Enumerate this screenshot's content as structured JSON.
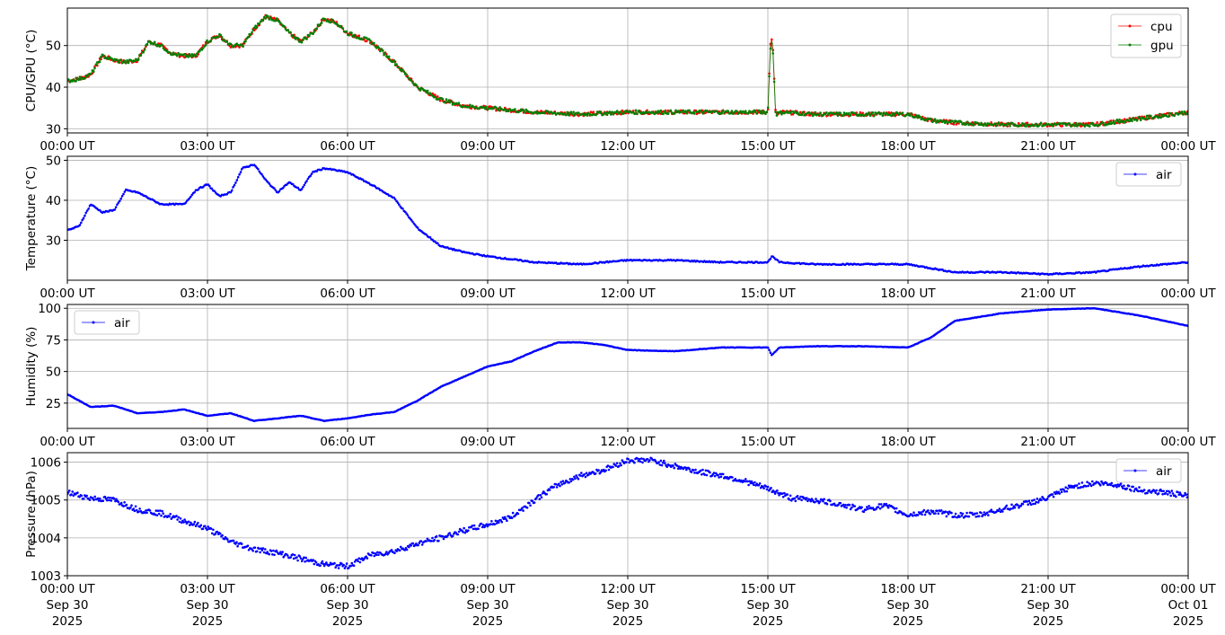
{
  "chart_data": [
    {
      "type": "line",
      "ylabel": "CPU/GPU (°C)",
      "ylim": [
        29,
        59
      ],
      "yticks": [
        30,
        40,
        50
      ],
      "xlim": [
        "2025-09-30T00:00",
        "2025-10-01T00:00"
      ],
      "xtick_labels": [
        "00:00 UT",
        "03:00 UT",
        "06:00 UT",
        "09:00 UT",
        "12:00 UT",
        "15:00 UT",
        "18:00 UT",
        "21:00 UT",
        "00:00 UT"
      ],
      "grid": true,
      "legend": "top-right",
      "series": [
        {
          "name": "cpu",
          "color": "#ff0000",
          "x": [
            "2025-09-30T00:00",
            "2025-09-30T00:15",
            "2025-09-30T00:30",
            "2025-09-30T00:45",
            "2025-09-30T01:00",
            "2025-09-30T01:15",
            "2025-09-30T01:30",
            "2025-09-30T01:45",
            "2025-09-30T02:00",
            "2025-09-30T02:15",
            "2025-09-30T02:30",
            "2025-09-30T02:45",
            "2025-09-30T03:00",
            "2025-09-30T03:15",
            "2025-09-30T03:30",
            "2025-09-30T03:45",
            "2025-09-30T04:00",
            "2025-09-30T04:15",
            "2025-09-30T04:30",
            "2025-09-30T04:45",
            "2025-09-30T05:00",
            "2025-09-30T05:15",
            "2025-09-30T05:30",
            "2025-09-30T05:45",
            "2025-09-30T06:00",
            "2025-09-30T06:30",
            "2025-09-30T07:00",
            "2025-09-30T07:30",
            "2025-09-30T08:00",
            "2025-09-30T08:30",
            "2025-09-30T09:00",
            "2025-09-30T09:30",
            "2025-09-30T10:00",
            "2025-09-30T11:00",
            "2025-09-30T12:00",
            "2025-09-30T13:00",
            "2025-09-30T14:00",
            "2025-09-30T15:00",
            "2025-09-30T15:03",
            "2025-09-30T15:06",
            "2025-09-30T15:10",
            "2025-09-30T15:20",
            "2025-09-30T16:00",
            "2025-09-30T17:00",
            "2025-09-30T18:00",
            "2025-09-30T18:30",
            "2025-09-30T19:00",
            "2025-09-30T20:00",
            "2025-09-30T21:00",
            "2025-09-30T22:00",
            "2025-09-30T23:00",
            "2025-10-01T00:00"
          ],
          "values": [
            41.5,
            42,
            43,
            47.5,
            46.5,
            46,
            46.5,
            51,
            50,
            48,
            47.5,
            47.5,
            51,
            52.5,
            50,
            50,
            54,
            57,
            56,
            53,
            51,
            53,
            56.5,
            55.5,
            53,
            51,
            46,
            40,
            37,
            35.5,
            35,
            34.5,
            34,
            33.5,
            34,
            34,
            34,
            34,
            50,
            52,
            33.5,
            34,
            33.5,
            33.5,
            33.5,
            32,
            31.5,
            31,
            31,
            31,
            32.5,
            34
          ]
        },
        {
          "name": "gpu",
          "color": "#008000",
          "x": [
            "2025-09-30T00:00",
            "2025-09-30T00:15",
            "2025-09-30T00:30",
            "2025-09-30T00:45",
            "2025-09-30T01:00",
            "2025-09-30T01:15",
            "2025-09-30T01:30",
            "2025-09-30T01:45",
            "2025-09-30T02:00",
            "2025-09-30T02:15",
            "2025-09-30T02:30",
            "2025-09-30T02:45",
            "2025-09-30T03:00",
            "2025-09-30T03:15",
            "2025-09-30T03:30",
            "2025-09-30T03:45",
            "2025-09-30T04:00",
            "2025-09-30T04:15",
            "2025-09-30T04:30",
            "2025-09-30T04:45",
            "2025-09-30T05:00",
            "2025-09-30T05:15",
            "2025-09-30T05:30",
            "2025-09-30T05:45",
            "2025-09-30T06:00",
            "2025-09-30T06:30",
            "2025-09-30T07:00",
            "2025-09-30T07:30",
            "2025-09-30T08:00",
            "2025-09-30T08:30",
            "2025-09-30T09:00",
            "2025-09-30T09:30",
            "2025-09-30T10:00",
            "2025-09-30T11:00",
            "2025-09-30T12:00",
            "2025-09-30T13:00",
            "2025-09-30T14:00",
            "2025-09-30T15:00",
            "2025-09-30T15:03",
            "2025-09-30T15:06",
            "2025-09-30T15:10",
            "2025-09-30T15:20",
            "2025-09-30T16:00",
            "2025-09-30T17:00",
            "2025-09-30T18:00",
            "2025-09-30T18:30",
            "2025-09-30T19:00",
            "2025-09-30T20:00",
            "2025-09-30T21:00",
            "2025-09-30T22:00",
            "2025-09-30T23:00",
            "2025-10-01T00:00"
          ],
          "values": [
            41.5,
            42,
            43,
            47.5,
            46.5,
            46,
            46.5,
            51,
            50,
            48,
            47.5,
            47.5,
            51,
            52.5,
            50,
            50,
            54,
            57,
            56,
            53,
            51,
            53,
            56.5,
            55.5,
            53,
            51,
            46,
            40,
            37,
            35.5,
            35,
            34.5,
            34,
            33.5,
            34,
            34,
            34,
            34,
            49,
            51,
            33.5,
            34,
            33.5,
            33.5,
            33.5,
            32,
            31.5,
            31,
            31,
            31,
            32.5,
            34
          ]
        }
      ]
    },
    {
      "type": "line",
      "ylabel": "Temperature (°C)",
      "ylim": [
        20,
        51
      ],
      "yticks": [
        30,
        40,
        50
      ],
      "xlim": [
        "2025-09-30T00:00",
        "2025-10-01T00:00"
      ],
      "xtick_labels": [
        "00:00 UT",
        "03:00 UT",
        "06:00 UT",
        "09:00 UT",
        "12:00 UT",
        "15:00 UT",
        "18:00 UT",
        "21:00 UT",
        "00:00 UT"
      ],
      "grid": true,
      "legend": "top-right",
      "series": [
        {
          "name": "air",
          "color": "#0000ff",
          "x": [
            "2025-09-30T00:00",
            "2025-09-30T00:15",
            "2025-09-30T00:30",
            "2025-09-30T00:45",
            "2025-09-30T01:00",
            "2025-09-30T01:15",
            "2025-09-30T01:30",
            "2025-09-30T02:00",
            "2025-09-30T02:30",
            "2025-09-30T02:45",
            "2025-09-30T03:00",
            "2025-09-30T03:15",
            "2025-09-30T03:30",
            "2025-09-30T03:45",
            "2025-09-30T04:00",
            "2025-09-30T04:15",
            "2025-09-30T04:30",
            "2025-09-30T04:45",
            "2025-09-30T05:00",
            "2025-09-30T05:15",
            "2025-09-30T05:30",
            "2025-09-30T06:00",
            "2025-09-30T06:30",
            "2025-09-30T07:00",
            "2025-09-30T07:30",
            "2025-09-30T08:00",
            "2025-09-30T08:30",
            "2025-09-30T09:00",
            "2025-09-30T10:00",
            "2025-09-30T11:00",
            "2025-09-30T12:00",
            "2025-09-30T13:00",
            "2025-09-30T14:00",
            "2025-09-30T15:00",
            "2025-09-30T15:05",
            "2025-09-30T15:15",
            "2025-09-30T16:00",
            "2025-09-30T17:00",
            "2025-09-30T18:00",
            "2025-09-30T19:00",
            "2025-09-30T20:00",
            "2025-09-30T21:00",
            "2025-09-30T22:00",
            "2025-09-30T23:00",
            "2025-10-01T00:00"
          ],
          "values": [
            32.5,
            33.5,
            39,
            37,
            37.5,
            42.5,
            42,
            39,
            39,
            42.5,
            44,
            41,
            42,
            48,
            49,
            45,
            42,
            44.5,
            42.5,
            47,
            48,
            47,
            44,
            40.5,
            33,
            28.5,
            27,
            26,
            24.5,
            24,
            25,
            25,
            24.5,
            24.5,
            26,
            24.5,
            24,
            24,
            24,
            22,
            22,
            21.5,
            22,
            23.5,
            24.5
          ]
        }
      ]
    },
    {
      "type": "line",
      "ylabel": "Humidity (%)",
      "ylim": [
        5,
        103
      ],
      "yticks": [
        25,
        50,
        75,
        100
      ],
      "xlim": [
        "2025-09-30T00:00",
        "2025-10-01T00:00"
      ],
      "xtick_labels": [
        "00:00 UT",
        "03:00 UT",
        "06:00 UT",
        "09:00 UT",
        "12:00 UT",
        "15:00 UT",
        "18:00 UT",
        "21:00 UT",
        "00:00 UT"
      ],
      "grid": true,
      "legend": "top-left",
      "series": [
        {
          "name": "air",
          "color": "#0000ff",
          "x": [
            "2025-09-30T00:00",
            "2025-09-30T00:30",
            "2025-09-30T01:00",
            "2025-09-30T01:30",
            "2025-09-30T02:00",
            "2025-09-30T02:30",
            "2025-09-30T03:00",
            "2025-09-30T03:30",
            "2025-09-30T04:00",
            "2025-09-30T04:30",
            "2025-09-30T05:00",
            "2025-09-30T05:30",
            "2025-09-30T06:00",
            "2025-09-30T06:30",
            "2025-09-30T07:00",
            "2025-09-30T07:30",
            "2025-09-30T08:00",
            "2025-09-30T08:30",
            "2025-09-30T09:00",
            "2025-09-30T09:30",
            "2025-09-30T10:00",
            "2025-09-30T10:30",
            "2025-09-30T11:00",
            "2025-09-30T11:30",
            "2025-09-30T12:00",
            "2025-09-30T13:00",
            "2025-09-30T14:00",
            "2025-09-30T15:00",
            "2025-09-30T15:05",
            "2025-09-30T15:15",
            "2025-09-30T16:00",
            "2025-09-30T17:00",
            "2025-09-30T18:00",
            "2025-09-30T18:30",
            "2025-09-30T19:00",
            "2025-09-30T20:00",
            "2025-09-30T21:00",
            "2025-09-30T22:00",
            "2025-09-30T23:00",
            "2025-10-01T00:00"
          ],
          "values": [
            32,
            22,
            23,
            17,
            18,
            20,
            15,
            17,
            11,
            13,
            15,
            11,
            13,
            16,
            18,
            27,
            38,
            46,
            54,
            58,
            66,
            73,
            73,
            71,
            67,
            66,
            69,
            69,
            63,
            69,
            70,
            70,
            69,
            77,
            90,
            96,
            99,
            100,
            94,
            86
          ]
        }
      ]
    },
    {
      "type": "scatter",
      "ylabel": "Pressure (hPa)",
      "ylim": [
        1003,
        1006.25
      ],
      "yticks": [
        1003,
        1004,
        1005,
        1006
      ],
      "xlim": [
        "2025-09-30T00:00",
        "2025-10-01T00:00"
      ],
      "xtick_labels": [
        {
          "time": "00:00 UT",
          "date": "Sep 30",
          "year": "2025"
        },
        {
          "time": "03:00 UT",
          "date": "Sep 30",
          "year": "2025"
        },
        {
          "time": "06:00 UT",
          "date": "Sep 30",
          "year": "2025"
        },
        {
          "time": "09:00 UT",
          "date": "Sep 30",
          "year": "2025"
        },
        {
          "time": "12:00 UT",
          "date": "Sep 30",
          "year": "2025"
        },
        {
          "time": "15:00 UT",
          "date": "Sep 30",
          "year": "2025"
        },
        {
          "time": "18:00 UT",
          "date": "Sep 30",
          "year": "2025"
        },
        {
          "time": "21:00 UT",
          "date": "Sep 30",
          "year": "2025"
        },
        {
          "time": "00:00 UT",
          "date": "Oct 01",
          "year": "2025"
        }
      ],
      "grid": true,
      "legend": "top-right",
      "series": [
        {
          "name": "air",
          "color": "#0000ff",
          "x": [
            "2025-09-30T00:00",
            "2025-09-30T00:30",
            "2025-09-30T01:00",
            "2025-09-30T01:30",
            "2025-09-30T02:00",
            "2025-09-30T02:30",
            "2025-09-30T03:00",
            "2025-09-30T03:30",
            "2025-09-30T04:00",
            "2025-09-30T04:30",
            "2025-09-30T05:00",
            "2025-09-30T05:30",
            "2025-09-30T06:00",
            "2025-09-30T06:30",
            "2025-09-30T07:00",
            "2025-09-30T07:30",
            "2025-09-30T08:00",
            "2025-09-30T08:30",
            "2025-09-30T09:00",
            "2025-09-30T09:30",
            "2025-09-30T10:00",
            "2025-09-30T10:30",
            "2025-09-30T11:00",
            "2025-09-30T11:30",
            "2025-09-30T12:00",
            "2025-09-30T12:30",
            "2025-09-30T13:00",
            "2025-09-30T13:30",
            "2025-09-30T14:00",
            "2025-09-30T14:30",
            "2025-09-30T15:00",
            "2025-09-30T15:30",
            "2025-09-30T16:00",
            "2025-09-30T16:30",
            "2025-09-30T17:00",
            "2025-09-30T17:30",
            "2025-09-30T18:00",
            "2025-09-30T18:30",
            "2025-09-30T19:00",
            "2025-09-30T19:30",
            "2025-09-30T20:00",
            "2025-09-30T20:30",
            "2025-09-30T21:00",
            "2025-09-30T21:30",
            "2025-09-30T22:00",
            "2025-09-30T22:30",
            "2025-09-30T23:00",
            "2025-09-30T23:30",
            "2025-10-01T00:00"
          ],
          "values": [
            1005.2,
            1005.05,
            1005.0,
            1004.75,
            1004.65,
            1004.45,
            1004.25,
            1003.9,
            1003.7,
            1003.6,
            1003.45,
            1003.3,
            1003.25,
            1003.55,
            1003.65,
            1003.85,
            1004.0,
            1004.2,
            1004.35,
            1004.55,
            1005.0,
            1005.4,
            1005.65,
            1005.8,
            1006.05,
            1006.05,
            1005.9,
            1005.75,
            1005.65,
            1005.5,
            1005.3,
            1005.05,
            1005.0,
            1004.9,
            1004.75,
            1004.85,
            1004.6,
            1004.7,
            1004.6,
            1004.6,
            1004.75,
            1004.9,
            1005.05,
            1005.35,
            1005.45,
            1005.4,
            1005.25,
            1005.2,
            1005.1
          ]
        }
      ]
    }
  ]
}
